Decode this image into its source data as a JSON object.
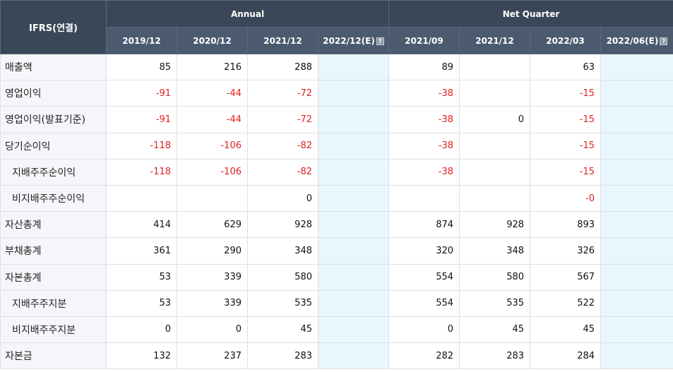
{
  "header": {
    "corner": "IFRS(연결)",
    "group_annual": "Annual",
    "group_quarter": "Net Quarter",
    "columns": [
      "2019/12",
      "2020/12",
      "2021/12",
      "2022/12(E)",
      "2021/09",
      "2021/12",
      "2022/03",
      "2022/06(E)"
    ],
    "help_glyph": "?"
  },
  "rows": [
    {
      "label": "매출액",
      "values": [
        "85",
        "216",
        "288",
        "",
        "89",
        "",
        "63",
        ""
      ]
    },
    {
      "label": "영업이익",
      "values": [
        "-91",
        "-44",
        "-72",
        "",
        "-38",
        "",
        "-15",
        ""
      ]
    },
    {
      "label": "영업이익(발표기준)",
      "values": [
        "-91",
        "-44",
        "-72",
        "",
        "-38",
        "0",
        "-15",
        ""
      ]
    },
    {
      "label": "당기순이익",
      "values": [
        "-118",
        "-106",
        "-82",
        "",
        "-38",
        "",
        "-15",
        ""
      ]
    },
    {
      "label": "지배주주순이익",
      "values": [
        "-118",
        "-106",
        "-82",
        "",
        "-38",
        "",
        "-15",
        ""
      ]
    },
    {
      "label": "비지배주주순이익",
      "values": [
        "",
        "",
        "0",
        "",
        "",
        "",
        "-0",
        ""
      ]
    },
    {
      "label": "자산총계",
      "values": [
        "414",
        "629",
        "928",
        "",
        "874",
        "928",
        "893",
        ""
      ]
    },
    {
      "label": "부채총계",
      "values": [
        "361",
        "290",
        "348",
        "",
        "320",
        "348",
        "326",
        ""
      ]
    },
    {
      "label": "자본총계",
      "values": [
        "53",
        "339",
        "580",
        "",
        "554",
        "580",
        "567",
        ""
      ]
    },
    {
      "label": "지배주주지분",
      "values": [
        "53",
        "339",
        "535",
        "",
        "554",
        "535",
        "522",
        ""
      ]
    },
    {
      "label": "비지배주주지분",
      "values": [
        "0",
        "0",
        "45",
        "",
        "0",
        "45",
        "45",
        ""
      ]
    },
    {
      "label": "자본금",
      "values": [
        "132",
        "237",
        "283",
        "",
        "282",
        "283",
        "284",
        ""
      ]
    }
  ],
  "colors": {
    "negative": "#e02020",
    "estimate_bg": "#e8f6fd",
    "header_bg": "#3c4b5e"
  }
}
